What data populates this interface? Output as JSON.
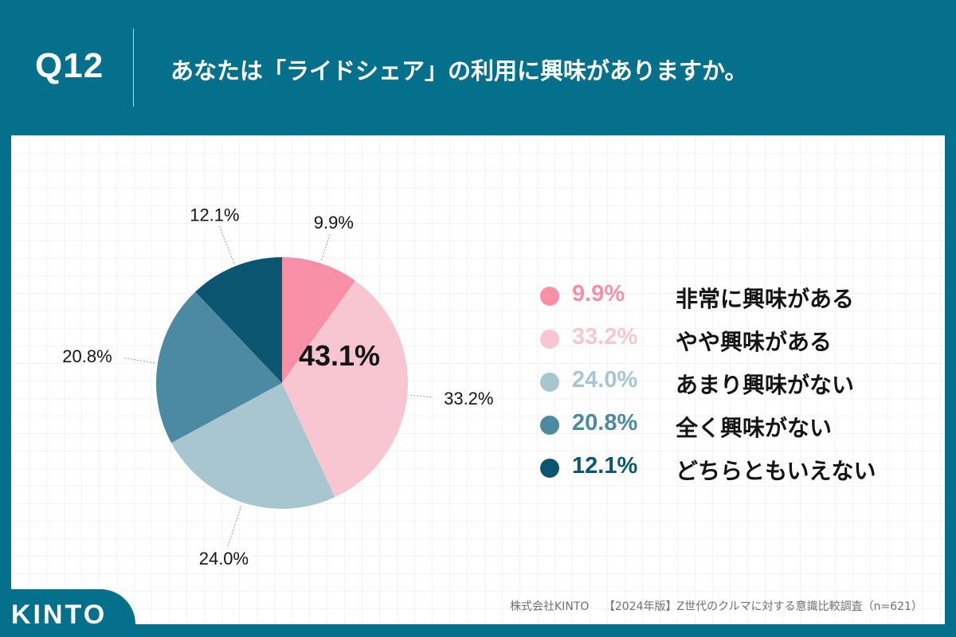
{
  "header": {
    "question_number": "Q12",
    "question_text": "あなたは「ライドシェア」の利用に興味がありますか。"
  },
  "chart_data": {
    "type": "pie",
    "categories": [
      "非常に興味がある",
      "やや興味がある",
      "あまり興味がない",
      "全く興味がない",
      "どちらともいえない"
    ],
    "values": [
      9.9,
      33.2,
      24.0,
      20.8,
      12.1
    ],
    "labels": [
      "9.9%",
      "33.2%",
      "24.0%",
      "20.8%",
      "12.1%"
    ],
    "colors": [
      "#f78fa6",
      "#f7c6d0",
      "#a7c6d0",
      "#4b8aa0",
      "#0b5570"
    ],
    "center_annotation": "43.1%",
    "legend_position": "right"
  },
  "footer": {
    "company": "株式会社KINTO",
    "source": "【2024年版】Z世代のクルマに対する意識比較調査（n=621）"
  },
  "logo": {
    "text": "KINTO"
  }
}
